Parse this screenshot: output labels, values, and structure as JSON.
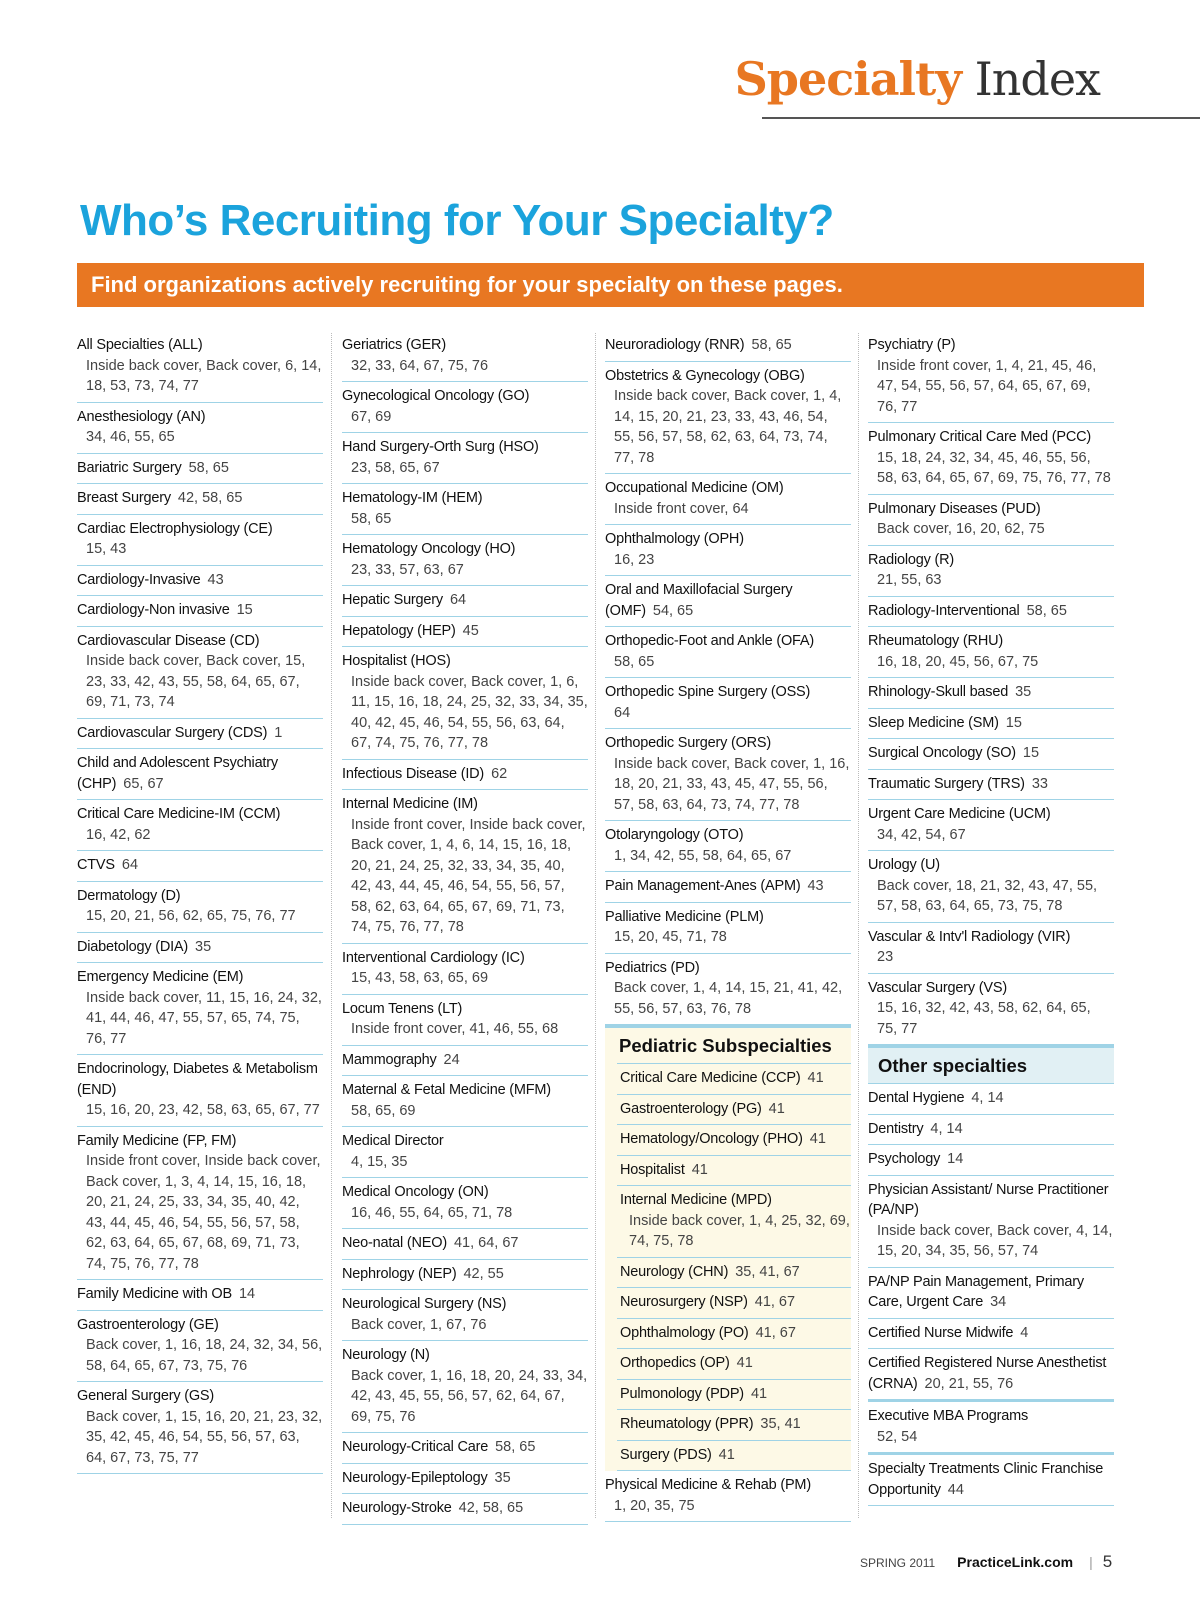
{
  "header": {
    "title_accent": "Specialty",
    "title_rest": "Index"
  },
  "headline": "Who’s Recruiting for Your Specialty?",
  "banner": "Find organizations actively recruiting for your specialty on these pages.",
  "columns": [
    [
      {
        "name": "All Specialties (ALL)",
        "pages": "Inside back cover, Back cover, 6, 14, 18, 53, 73, 74, 77"
      },
      {
        "name": "Anesthesiology (AN)",
        "pages": "34, 46, 55, 65"
      },
      {
        "name": "Bariatric Surgery",
        "pages": "58, 65",
        "inline": true
      },
      {
        "name": "Breast Surgery",
        "pages": "42, 58, 65",
        "inline": true
      },
      {
        "name": "Cardiac Electrophysiology (CE)",
        "pages": "15, 43"
      },
      {
        "name": "Cardiology-Invasive",
        "pages": "43",
        "inline": true
      },
      {
        "name": "Cardiology-Non invasive",
        "pages": "15",
        "inline": true
      },
      {
        "name": "Cardiovascular Disease (CD)",
        "pages": "Inside back cover, Back cover, 15, 23, 33, 42, 43, 55, 58, 64, 65, 67, 69, 71, 73, 74"
      },
      {
        "name": "Cardiovascular Surgery (CDS)",
        "pages": "1",
        "inline": true
      },
      {
        "name": "Child and Adolescent Psychiatry (CHP)",
        "pages": "65, 67",
        "inline": true
      },
      {
        "name": "Critical Care Medicine-IM (CCM)",
        "pages": "16, 42, 62"
      },
      {
        "name": "CTVS",
        "pages": "64",
        "inline": true
      },
      {
        "name": "Dermatology (D)",
        "pages": "15, 20, 21, 56, 62, 65, 75, 76, 77"
      },
      {
        "name": "Diabetology (DIA)",
        "pages": "35",
        "inline": true
      },
      {
        "name": "Emergency Medicine (EM)",
        "pages": "Inside back cover, 11, 15, 16, 24, 32, 41, 44, 46, 47, 55, 57, 65, 74, 75, 76, 77"
      },
      {
        "name": "Endocrinology, Diabetes & Metabolism (END)",
        "pages": "15, 16, 20, 23, 42, 58, 63, 65, 67, 77"
      },
      {
        "name": "Family Medicine (FP, FM)",
        "pages": "Inside front cover, Inside back cover, Back cover, 1, 3, 4, 14, 15, 16, 18, 20, 21, 24, 25, 33, 34, 35, 40, 42, 43, 44, 45, 46, 54, 55, 56, 57, 58, 62, 63, 64, 65, 67, 68, 69, 71, 73, 74, 75, 76, 77, 78"
      },
      {
        "name": "Family Medicine with OB",
        "pages": "14",
        "inline": true
      },
      {
        "name": "Gastroenterology (GE)",
        "pages": "Back cover, 1, 16, 18, 24, 32, 34, 56, 58, 64, 65, 67, 73, 75, 76"
      },
      {
        "name": "General Surgery (GS)",
        "pages": "Back cover, 1, 15, 16, 20, 21, 23, 32, 35, 42, 45, 46, 54, 55, 56, 57, 63, 64, 67, 73, 75, 77"
      }
    ],
    [
      {
        "name": "Geriatrics (GER)",
        "pages": "32, 33, 64, 67, 75, 76"
      },
      {
        "name": "Gynecological Oncology (GO)",
        "pages": "67, 69"
      },
      {
        "name": "Hand Surgery-Orth Surg (HSO)",
        "pages": "23, 58, 65, 67"
      },
      {
        "name": "Hematology-IM (HEM)",
        "pages": "58, 65"
      },
      {
        "name": "Hematology Oncology (HO)",
        "pages": "23, 33, 57, 63, 67"
      },
      {
        "name": "Hepatic Surgery",
        "pages": "64",
        "inline": true
      },
      {
        "name": "Hepatology (HEP)",
        "pages": "45",
        "inline": true
      },
      {
        "name": "Hospitalist (HOS)",
        "pages": "Inside back cover, Back cover, 1, 6, 11, 15, 16, 18, 24, 25, 32, 33, 34, 35, 40, 42, 45, 46, 54, 55, 56, 63, 64, 67, 74, 75, 76, 77, 78"
      },
      {
        "name": "Infectious Disease (ID)",
        "pages": "62",
        "inline": true
      },
      {
        "name": "Internal Medicine (IM)",
        "pages": "Inside front cover, Inside back cover, Back cover, 1, 4, 6, 14, 15, 16, 18, 20, 21, 24, 25, 32, 33, 34, 35, 40, 42, 43, 44, 45, 46, 54, 55, 56, 57, 58, 62, 63, 64, 65, 67, 69, 71, 73, 74, 75, 76, 77, 78"
      },
      {
        "name": "Interventional Cardiology (IC)",
        "pages": "15, 43, 58, 63, 65, 69"
      },
      {
        "name": "Locum Tenens (LT)",
        "pages": "Inside front cover, 41, 46, 55, 68"
      },
      {
        "name": "Mammography",
        "pages": "24",
        "inline": true
      },
      {
        "name": "Maternal & Fetal Medicine (MFM)",
        "pages": "58, 65, 69"
      },
      {
        "name": "Medical Director",
        "pages": "4, 15, 35"
      },
      {
        "name": "Medical Oncology (ON)",
        "pages": "16, 46, 55, 64, 65, 71, 78"
      },
      {
        "name": "Neo-natal (NEO)",
        "pages": "41, 64, 67",
        "inline": true
      },
      {
        "name": "Nephrology (NEP)",
        "pages": "42, 55",
        "inline": true
      },
      {
        "name": "Neurological Surgery (NS)",
        "pages": "Back cover, 1, 67, 76"
      },
      {
        "name": "Neurology (N)",
        "pages": "Back cover, 1, 16, 18, 20, 24, 33, 34, 42, 43, 45, 55, 56, 57, 62, 64, 67, 69, 75, 76"
      },
      {
        "name": "Neurology-Critical Care",
        "pages": "58, 65",
        "inline": true
      },
      {
        "name": "Neurology-Epileptology",
        "pages": "35",
        "inline": true
      },
      {
        "name": "Neurology-Stroke",
        "pages": "42, 58, 65",
        "inline": true
      }
    ],
    [
      {
        "name": "Neuroradiology (RNR)",
        "pages": "58, 65",
        "inline": true
      },
      {
        "name": "Obstetrics & Gynecology (OBG)",
        "pages": "Inside back cover, Back cover, 1, 4, 14, 15, 20, 21, 23, 33, 43, 46, 54, 55, 56, 57, 58, 62, 63, 64, 73, 74, 77, 78"
      },
      {
        "name": "Occupational Medicine (OM)",
        "pages": "Inside front cover, 64"
      },
      {
        "name": "Ophthalmology (OPH)",
        "pages": "16, 23"
      },
      {
        "name": "Oral and Maxillofacial Surgery (OMF)",
        "pages": "54, 65",
        "inline": true
      },
      {
        "name": "Orthopedic-Foot and Ankle (OFA)",
        "pages": "58, 65"
      },
      {
        "name": "Orthopedic Spine Surgery (OSS)",
        "pages": "64"
      },
      {
        "name": "Orthopedic Surgery (ORS)",
        "pages": "Inside back cover, Back cover, 1, 16, 18, 20, 21, 33, 43, 45, 47, 55, 56, 57, 58, 63, 64, 73, 74, 77, 78"
      },
      {
        "name": "Otolaryngology (OTO)",
        "pages": "1, 34, 42, 55, 58, 64, 65, 67"
      },
      {
        "name": "Pain Management-Anes (APM)",
        "pages": "43",
        "inline": true
      },
      {
        "name": "Palliative Medicine (PLM)",
        "pages": "15, 20, 45, 71, 78"
      },
      {
        "name": "Pediatrics (PD)",
        "pages": "Back cover, 1, 4, 14, 15, 21, 41, 42, 55, 56, 57, 63, 76, 78"
      }
    ],
    [
      {
        "name": "Psychiatry (P)",
        "pages": "Inside front cover, 1, 4, 21, 45, 46, 47, 54, 55, 56, 57, 64, 65, 67, 69, 76, 77"
      },
      {
        "name": "Pulmonary Critical Care Med (PCC)",
        "pages": "15, 18, 24, 32, 34, 45, 46, 55, 56, 58, 63, 64, 65, 67, 69, 75, 76, 77, 78"
      },
      {
        "name": "Pulmonary Diseases (PUD)",
        "pages": "Back cover, 16, 20, 62, 75"
      },
      {
        "name": "Radiology (R)",
        "pages": "21, 55, 63"
      },
      {
        "name": "Radiology-Interventional",
        "pages": "58, 65",
        "inline": true
      },
      {
        "name": "Rheumatology (RHU)",
        "pages": "16, 18, 20, 45, 56, 67, 75"
      },
      {
        "name": "Rhinology-Skull based",
        "pages": "35",
        "inline": true
      },
      {
        "name": "Sleep Medicine (SM)",
        "pages": "15",
        "inline": true
      },
      {
        "name": "Surgical Oncology (SO)",
        "pages": "15",
        "inline": true
      },
      {
        "name": "Traumatic Surgery (TRS)",
        "pages": "33",
        "inline": true
      },
      {
        "name": "Urgent Care Medicine (UCM)",
        "pages": "34, 42, 54, 67"
      },
      {
        "name": "Urology (U)",
        "pages": "Back cover, 18, 21, 32, 43, 47, 55, 57, 58, 63, 64, 65, 73, 75, 78"
      },
      {
        "name": "Vascular & Intv'l Radiology (VIR)",
        "pages": "23"
      },
      {
        "name": "Vascular Surgery (VS)",
        "pages": "15, 16, 32, 42, 43, 58, 62, 64, 65, 75, 77"
      }
    ]
  ],
  "pediatric": {
    "title": "Pediatric Subspecialties",
    "items": [
      {
        "name": "Critical Care Medicine (CCP)",
        "pages": "41",
        "inline": true
      },
      {
        "name": "Gastroenterology (PG)",
        "pages": "41",
        "inline": true
      },
      {
        "name": "Hematology/Oncology (PHO)",
        "pages": "41",
        "inline": true
      },
      {
        "name": "Hospitalist",
        "pages": "41",
        "inline": true
      },
      {
        "name": "Internal Medicine (MPD)",
        "pages": "Inside back cover, 1, 4, 25, 32, 69, 74, 75, 78"
      },
      {
        "name": "Neurology (CHN)",
        "pages": "35, 41, 67",
        "inline": true
      },
      {
        "name": "Neurosurgery (NSP)",
        "pages": "41, 67",
        "inline": true
      },
      {
        "name": "Ophthalmology (PO)",
        "pages": "41, 67",
        "inline": true
      },
      {
        "name": "Orthopedics (OP)",
        "pages": "41",
        "inline": true
      },
      {
        "name": "Pulmonology (PDP)",
        "pages": "41",
        "inline": true
      },
      {
        "name": "Rheumatology (PPR)",
        "pages": "35, 41",
        "inline": true
      },
      {
        "name": "Surgery (PDS)",
        "pages": "41",
        "inline": true
      }
    ],
    "after": [
      {
        "name": "Physical Medicine & Rehab (PM)",
        "pages": "1, 20, 35, 75"
      }
    ]
  },
  "other": {
    "title": "Other specialties",
    "items": [
      {
        "name": "Dental Hygiene",
        "pages": "4, 14",
        "inline": true
      },
      {
        "name": "Dentistry",
        "pages": "4, 14",
        "inline": true
      },
      {
        "name": "Psychology",
        "pages": "14",
        "inline": true
      },
      {
        "name": "Physician Assistant/ Nurse Practitioner (PA/NP)",
        "pages": "Inside back cover, Back cover, 4, 14, 15, 20, 34, 35, 56, 57, 74"
      },
      {
        "name": "PA/NP Pain Management, Primary Care, Urgent Care",
        "pages": "34",
        "inline": true
      },
      {
        "name": "Certified Nurse Midwife",
        "pages": "4",
        "inline": true
      },
      {
        "name": "Certified Registered Nurse Anesthetist (CRNA)",
        "pages": "20, 21, 55, 76",
        "inline": true
      }
    ],
    "after": [
      {
        "name": "Executive MBA Programs",
        "pages": "52, 54"
      },
      {
        "name": "Specialty Treatments Clinic Franchise Opportunity",
        "pages": "44",
        "inline": true
      }
    ]
  },
  "footer": {
    "issue": "SPRING 2011",
    "site": "PracticeLink.com",
    "separator": "|",
    "page": "5"
  },
  "colors": {
    "accent_orange": "#e87722",
    "headline_blue": "#1ba3dc",
    "rule_blue": "#9fd3e6"
  }
}
